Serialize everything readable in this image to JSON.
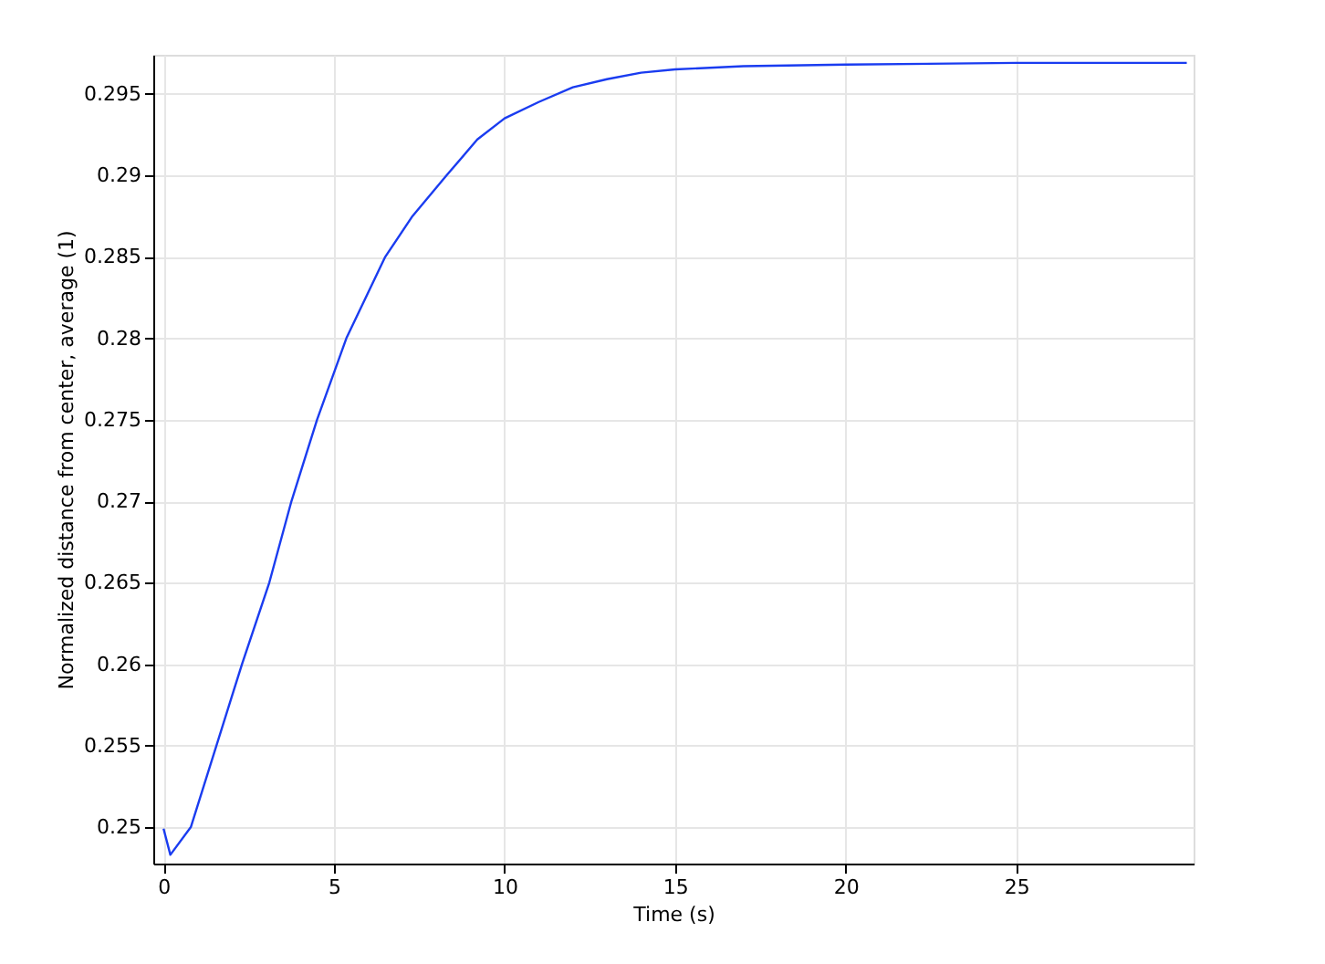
{
  "chart_data": {
    "type": "line",
    "xlabel": "Time (s)",
    "ylabel": "Normalized distance from center, average (1)",
    "series": [
      {
        "color": "#1a3cf0",
        "x": [
          0,
          0.2,
          0.8,
          1.55,
          2.3,
          3.1,
          3.75,
          4.5,
          5.36,
          6.5,
          7.3,
          8.3,
          9.2,
          10,
          11,
          12,
          13,
          14,
          15,
          17,
          20,
          25,
          30
        ],
        "values": [
          0.2499,
          0.2483,
          0.25,
          0.255,
          0.26,
          0.265,
          0.27,
          0.275,
          0.28,
          0.285,
          0.2875,
          0.29,
          0.2922,
          0.2935,
          0.2945,
          0.2954,
          0.2959,
          0.2963,
          0.2965,
          0.2967,
          0.2968,
          0.2969,
          0.2969
        ]
      }
    ],
    "xlim": [
      -0.3,
      30.2
    ],
    "xticks": [
      0,
      5,
      10,
      15,
      20,
      25
    ],
    "ylim": [
      0.24776,
      0.2974
    ],
    "yticks": [
      0.25,
      0.255,
      0.26,
      0.265,
      0.27,
      0.275,
      0.28,
      0.285,
      0.29,
      0.295
    ],
    "grid": true,
    "legend": false,
    "marker": "none",
    "line_style": "solid"
  }
}
